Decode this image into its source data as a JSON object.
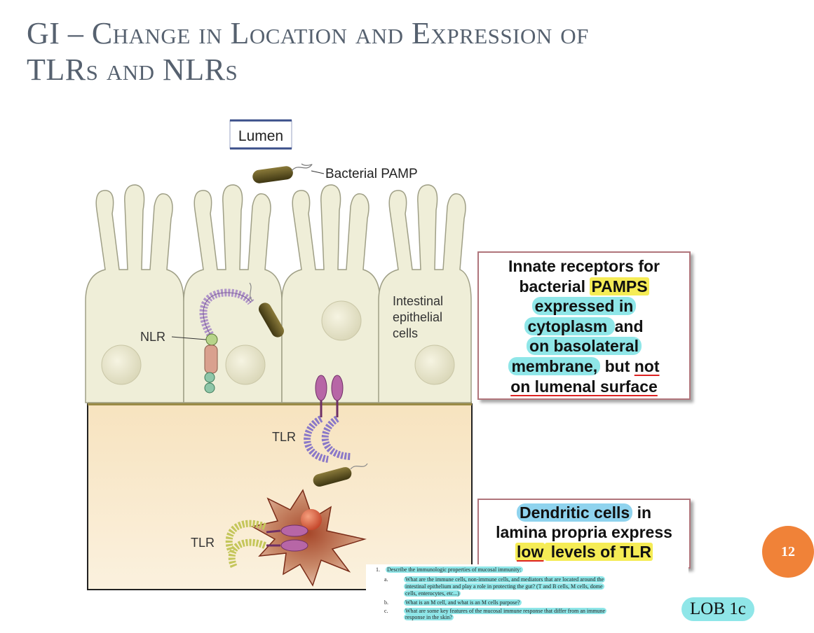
{
  "title": {
    "line1": "GI – Change in Location and Expression of",
    "line2": "TLRs and NLRs"
  },
  "diagram": {
    "lumen_label": "Lumen",
    "pamp_label": "Bacterial PAMP",
    "nlr_label": "NLR",
    "intestinal_label_1": "Intestinal",
    "intestinal_label_2": "epithelial",
    "intestinal_label_3": "cells",
    "tlr_label_1": "TLR",
    "tlr_label_2": "TLR"
  },
  "callout1": {
    "l1": "Innate receptors for",
    "l2a": "bacterial ",
    "l2b": "PAMPS",
    "l3": "expressed in",
    "l4a": "cytoplasm ",
    "l4b": "and",
    "l5": "on basolateral",
    "l6a": "membrane,",
    "l6b": " but ",
    "l6c": "not",
    "l7": "on lumenal surface"
  },
  "callout2": {
    "l1a": "Dendritic cells",
    "l1b": " in",
    "l2": "lamina propria express",
    "l3a": "low",
    "l3b": " levels of TLR"
  },
  "page_number": "12",
  "notes": {
    "n1_num": "1.",
    "n1": "Describe the immunologic properties of mucosal immunity:",
    "n2_num": "a.",
    "n2_l1": "What are the immune cells, non-immune cells, and mediators that are located around the",
    "n2_l2": "intestinal epithelium and play a role in protecting the gut? (T and B cells, M cells, dome",
    "n2_l3": "cells, enterocytes, etc...)",
    "n3_num": "b.",
    "n3": "What is an M cell, and what is an M cells purpose?",
    "n4_num": "c.",
    "n4_l1": "What are some key features of the mucosal immune response that differ from an immune",
    "n4_l2": "response in the skin?"
  },
  "lob_label": "LOB 1c",
  "colors": {
    "title": "#56616f",
    "epithelium": "#efeed8",
    "lamina_propria": "#f5e6c8",
    "callout_border": "#b0757b",
    "highlight_cyan": "#8fe6e8",
    "highlight_yellow": "#f5ec55",
    "page_circle": "#f08238"
  }
}
